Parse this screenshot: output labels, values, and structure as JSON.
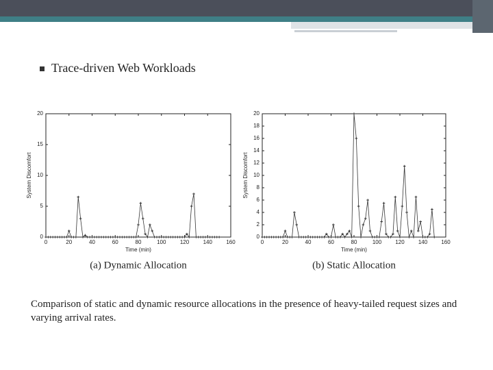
{
  "slide": {
    "bullet": "Trace-driven Web Workloads",
    "caption": "Comparison of static and dynamic resource allocations in the presence of heavy-tailed request sizes and varying arrival rates."
  },
  "chart_data": [
    {
      "type": "line",
      "title": "(a) Dynamic Allocation",
      "x_label": "Time (min)",
      "y_label": "System Discomfort",
      "xlim": [
        0,
        160
      ],
      "xticks": [
        0,
        20,
        40,
        60,
        80,
        100,
        120,
        140,
        160
      ],
      "ylim": [
        0,
        20
      ],
      "yticks": [
        0,
        5,
        10,
        15,
        20
      ],
      "x": [
        0,
        2,
        4,
        6,
        8,
        10,
        12,
        14,
        16,
        18,
        20,
        22,
        24,
        26,
        28,
        30,
        32,
        34,
        36,
        38,
        40,
        42,
        44,
        46,
        48,
        50,
        52,
        54,
        56,
        58,
        60,
        62,
        64,
        66,
        68,
        70,
        72,
        74,
        76,
        78,
        80,
        82,
        84,
        86,
        88,
        90,
        92,
        94,
        96,
        98,
        100,
        102,
        104,
        106,
        108,
        110,
        112,
        114,
        116,
        118,
        120,
        122,
        124,
        126,
        128,
        130,
        132,
        134,
        136,
        138,
        140,
        142,
        144,
        146,
        148,
        150
      ],
      "series": [
        {
          "color": "#333333",
          "values": [
            0,
            0,
            0,
            0,
            0,
            0,
            0,
            0,
            0,
            0,
            1,
            0,
            0,
            0,
            6.5,
            3,
            0,
            0.3,
            0,
            0,
            0,
            0,
            0,
            0,
            0,
            0,
            0,
            0,
            0,
            0,
            0,
            0,
            0,
            0,
            0,
            0,
            0,
            0,
            0,
            0,
            2,
            5.5,
            3,
            0.5,
            0,
            2,
            1,
            0,
            0,
            0,
            0,
            0,
            0,
            0,
            0,
            0,
            0,
            0,
            0,
            0,
            0,
            0.5,
            0,
            5,
            7,
            0,
            0,
            0,
            0,
            0,
            0,
            0,
            0,
            0,
            0,
            0
          ]
        }
      ]
    },
    {
      "type": "line",
      "title": "(b) Static Allocation",
      "x_label": "Time (min)",
      "y_label": "System Discomfort",
      "xlim": [
        0,
        160
      ],
      "xticks": [
        0,
        20,
        40,
        60,
        80,
        100,
        120,
        140,
        160
      ],
      "ylim": [
        0,
        20
      ],
      "yticks": [
        0,
        2,
        4,
        6,
        8,
        10,
        12,
        14,
        16,
        18,
        20
      ],
      "x": [
        0,
        2,
        4,
        6,
        8,
        10,
        12,
        14,
        16,
        18,
        20,
        22,
        24,
        26,
        28,
        30,
        32,
        34,
        36,
        38,
        40,
        42,
        44,
        46,
        48,
        50,
        52,
        54,
        56,
        58,
        60,
        62,
        64,
        66,
        68,
        70,
        72,
        74,
        76,
        78,
        80,
        82,
        84,
        86,
        88,
        90,
        92,
        94,
        96,
        98,
        100,
        102,
        104,
        106,
        108,
        110,
        112,
        114,
        116,
        118,
        120,
        122,
        124,
        126,
        128,
        130,
        132,
        134,
        136,
        138,
        140,
        142,
        144,
        146,
        148,
        150
      ],
      "series": [
        {
          "color": "#333333",
          "values": [
            0,
            0,
            0,
            0,
            0,
            0,
            0,
            0,
            0,
            0,
            1,
            0,
            0,
            0,
            4,
            2,
            0,
            0,
            0,
            0,
            0,
            0,
            0,
            0,
            0,
            0,
            0,
            0,
            0.5,
            0,
            0,
            2,
            0,
            0,
            0,
            0.5,
            0,
            0.5,
            1,
            0,
            20,
            16,
            5,
            0,
            2,
            3,
            6,
            1,
            0,
            0,
            0,
            0,
            2.5,
            5.5,
            0.5,
            0,
            0,
            0.5,
            6.5,
            1,
            0,
            5,
            11.5,
            4,
            0,
            1,
            0,
            6.5,
            1,
            2.5,
            0,
            0,
            0,
            0.5,
            4.5,
            0
          ]
        }
      ]
    }
  ]
}
